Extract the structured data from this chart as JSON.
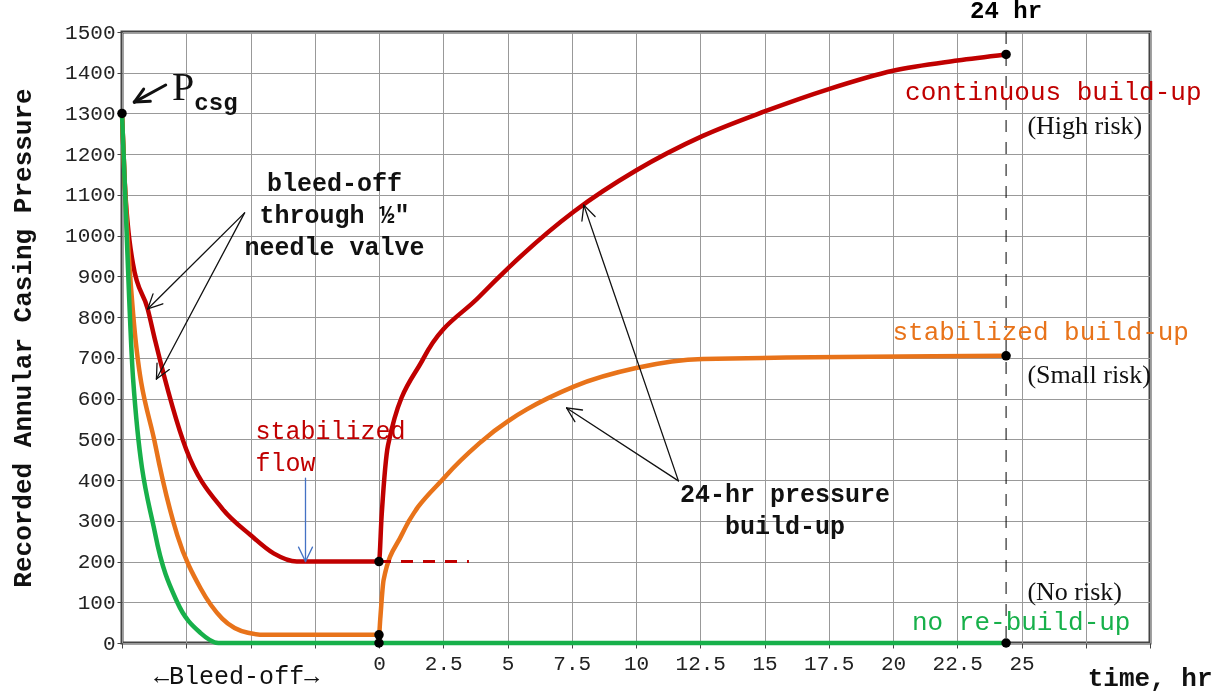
{
  "chart_data": {
    "type": "line",
    "xlabel": "time, hr",
    "ylabel": "Recorded Annular Casing Pressure",
    "xlim": [
      -10,
      30
    ],
    "ylim": [
      0,
      1500
    ],
    "xticks": [
      {
        "value": -10,
        "label": null
      },
      {
        "value": -7.5,
        "label": null
      },
      {
        "value": -5,
        "label": null
      },
      {
        "value": -2.5,
        "label": null
      },
      0,
      2.5,
      5,
      7.5,
      10,
      12.5,
      15,
      17.5,
      20,
      22.5,
      25,
      {
        "value": 27.5,
        "label": null
      },
      {
        "value": 30,
        "label": null
      }
    ],
    "yticks": [
      0,
      100,
      200,
      300,
      400,
      500,
      600,
      700,
      800,
      900,
      1000,
      1100,
      1200,
      1300,
      1400,
      1500
    ],
    "grid": true,
    "line_style": "solid",
    "series": [
      {
        "color": "#c00000",
        "x": [
          -10,
          -9.9,
          -9.57,
          -9,
          -8.7,
          -7.5,
          -6.1,
          -5,
          -4.1,
          -3.2,
          -2.5,
          0,
          0.1,
          0.35,
          1.74,
          3.9,
          7.6,
          10,
          12.6,
          15,
          17.5,
          20,
          22.5,
          24.4
        ],
        "values": [
          1300,
          1140,
          930,
          820,
          740,
          475,
          330,
          265,
          220,
          200,
          200,
          200,
          310,
          485,
          700,
          850,
          1060,
          1160,
          1245,
          1305,
          1360,
          1405,
          1430,
          1445
        ]
      },
      {
        "color": "#e8731a",
        "x": [
          -10,
          -9.9,
          -9.57,
          -8.7,
          -7.85,
          -6.95,
          -6.1,
          -5.1,
          -4.4,
          0,
          0.05,
          0.18,
          0.88,
          2.6,
          3.9,
          7.6,
          10,
          12.6,
          24.4
        ],
        "values": [
          1300,
          1140,
          810,
          485,
          265,
          135,
          60,
          25,
          20,
          20,
          60,
          155,
          265,
          410,
          490,
          630,
          675,
          697,
          705
        ]
      },
      {
        "color": "#17b04a",
        "x": [
          -10,
          -9.9,
          -9.57,
          -8.7,
          -7.85,
          -6.95,
          -6.25,
          0,
          24.4
        ],
        "values": [
          1300,
          1140,
          650,
          265,
          100,
          25,
          0,
          0,
          0
        ]
      },
      {
        "color": "#c00000",
        "line_style": "dashed",
        "x": [
          0,
          3.5
        ],
        "values": [
          200,
          200
        ]
      },
      {
        "type": "scatter",
        "color": "#000000",
        "marker": "circle",
        "x": [
          -10,
          0,
          0,
          0,
          24.4,
          24.4,
          24.4
        ],
        "values": [
          1300,
          200,
          20,
          0,
          1445,
          705,
          0
        ]
      }
    ],
    "ref_lines": [
      {
        "axis": "x",
        "value": 24.4,
        "label": "24 hr",
        "color": "#000000",
        "line_style": "dashed"
      }
    ],
    "annotations": [
      {
        "text": "P$_{csg}$",
        "x": -10,
        "y": 1300
      },
      {
        "text": "bleed-off\nthrough ½″\nneedle valve",
        "x": -9,
        "y": 820
      },
      {
        "text": "stabilized\nflow",
        "x": -2.86,
        "y": 200
      },
      {
        "text": "24-hr pressure\nbuild-up",
        "x": 7.97,
        "y": 1075
      },
      {
        "text": "continuous build-up",
        "x": 24.4,
        "y": 1445
      },
      "(High risk)",
      {
        "text": "stabilized build-up",
        "x": 24.4,
        "y": 705
      },
      "(Small risk)",
      "(No risk)",
      {
        "text": "no re-build-up",
        "x": 24.4,
        "y": 0
      },
      "←Bleed-off→"
    ]
  }
}
